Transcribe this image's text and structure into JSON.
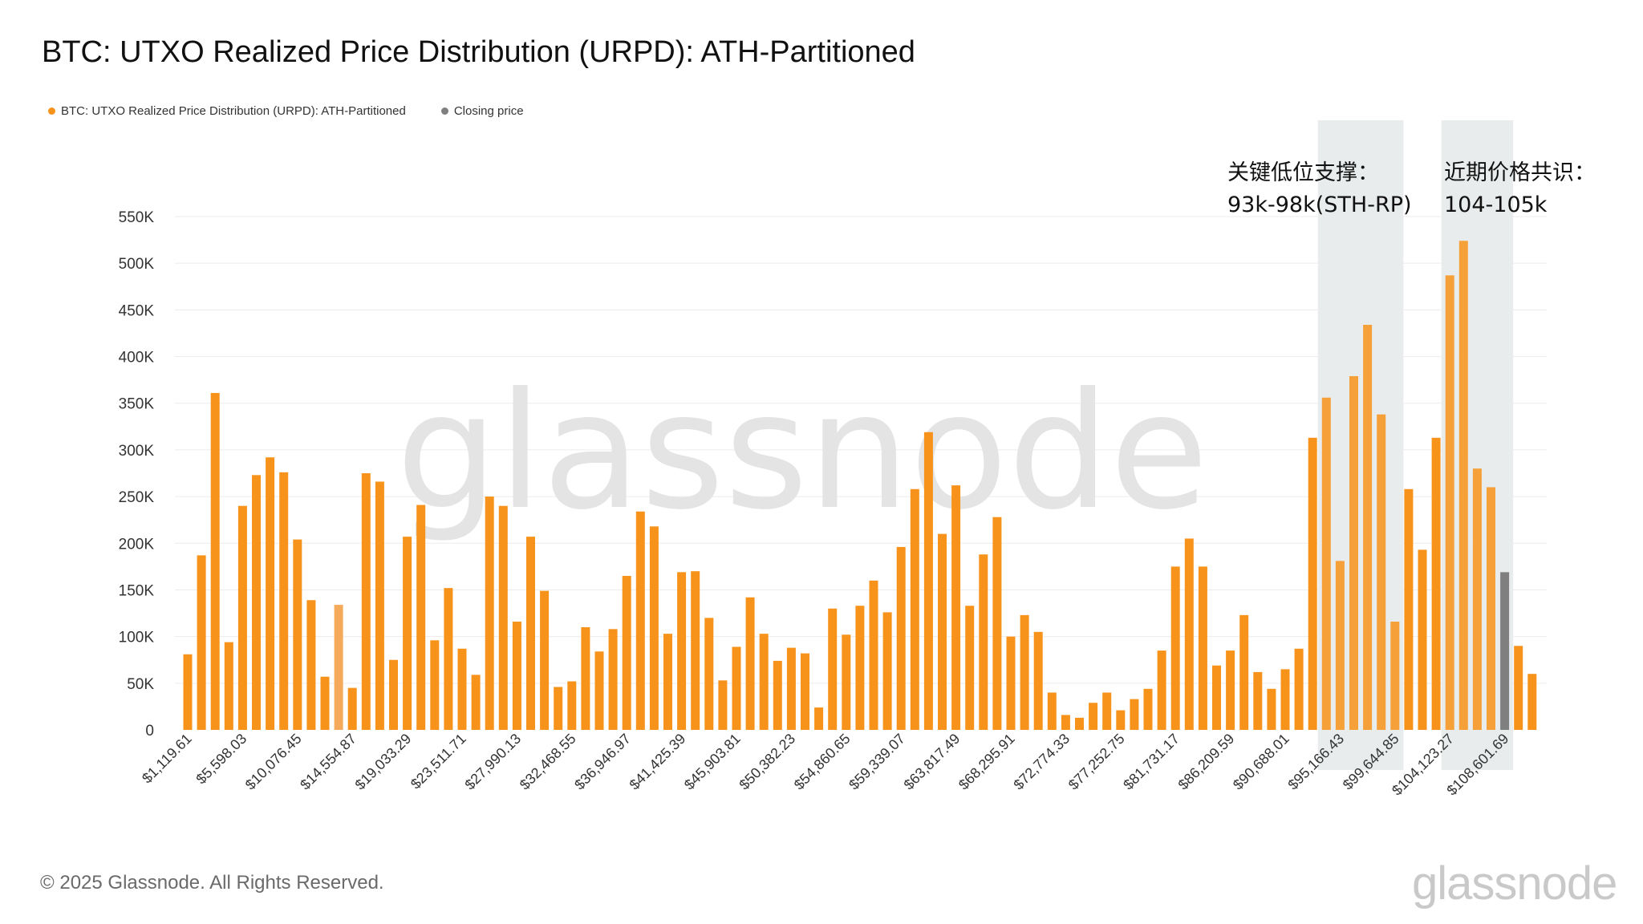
{
  "title": "BTC: UTXO Realized Price Distribution (URPD): ATH-Partitioned",
  "legend": [
    {
      "label": "BTC: UTXO Realized Price Distribution (URPD): ATH-Partitioned",
      "color": "#f7931a"
    },
    {
      "label": "Closing price",
      "color": "#7f7f7f"
    }
  ],
  "footer": "© 2025 Glassnode. All Rights Reserved.",
  "watermark": "glassnode",
  "annotations": [
    {
      "line1": "关键低位支撑：",
      "line2": "93k-98k(STH-RP)"
    },
    {
      "line1": "近期价格共识：",
      "line2": "104-105k"
    }
  ],
  "chart_data": {
    "type": "bar",
    "y_ticks": [
      "0",
      "50K",
      "100K",
      "150K",
      "200K",
      "250K",
      "300K",
      "350K",
      "400K",
      "450K",
      "500K",
      "550K"
    ],
    "ylim": [
      0,
      550000
    ],
    "x_tick_labels": [
      "$1,119.61",
      "$5,598.03",
      "$10,076.45",
      "$14,554.87",
      "$19,033.29",
      "$23,511.71",
      "$27,990.13",
      "$32,468.55",
      "$36,946.97",
      "$41,425.39",
      "$45,903.81",
      "$50,382.23",
      "$54,860.65",
      "$59,339.07",
      "$63,817.49",
      "$68,295.91",
      "$72,774.33",
      "$77,252.75",
      "$81,731.17",
      "$86,209.59",
      "$90,688.01",
      "$95,166.43",
      "$99,644.85",
      "$104,123.27",
      "$108,601.69"
    ],
    "tick_every": 4,
    "bucket_start": 1119.61,
    "bucket_width": 1119.6,
    "closing_price_index": 96,
    "shaded_ranges": [
      [
        83,
        88
      ],
      [
        92,
        96
      ]
    ],
    "highlight_index": 11,
    "colors": {
      "bar": "#f7931a",
      "bar_light": "#f5a95a",
      "closing": "#7f7f7f",
      "shade": "#d6dcdc"
    },
    "values": [
      81000,
      187000,
      361000,
      94000,
      240000,
      273000,
      292000,
      276000,
      204000,
      139000,
      57000,
      134000,
      45000,
      275000,
      266000,
      75000,
      207000,
      241000,
      96000,
      152000,
      87000,
      59000,
      250000,
      240000,
      116000,
      207000,
      149000,
      46000,
      52000,
      110000,
      84000,
      108000,
      165000,
      234000,
      218000,
      103000,
      169000,
      170000,
      120000,
      53000,
      89000,
      142000,
      103000,
      74000,
      88000,
      82000,
      24000,
      130000,
      102000,
      133000,
      160000,
      126000,
      196000,
      258000,
      319000,
      210000,
      262000,
      133000,
      188000,
      228000,
      100000,
      123000,
      105000,
      40000,
      16000,
      13000,
      29000,
      40000,
      21000,
      33000,
      44000,
      85000,
      175000,
      205000,
      175000,
      69000,
      85000,
      123000,
      62000,
      44000,
      65000,
      87000,
      313000,
      356000,
      181000,
      379000,
      434000,
      338000,
      116000,
      258000,
      193000,
      313000,
      487000,
      524000,
      280000,
      260000,
      169000,
      90000,
      60000
    ]
  }
}
